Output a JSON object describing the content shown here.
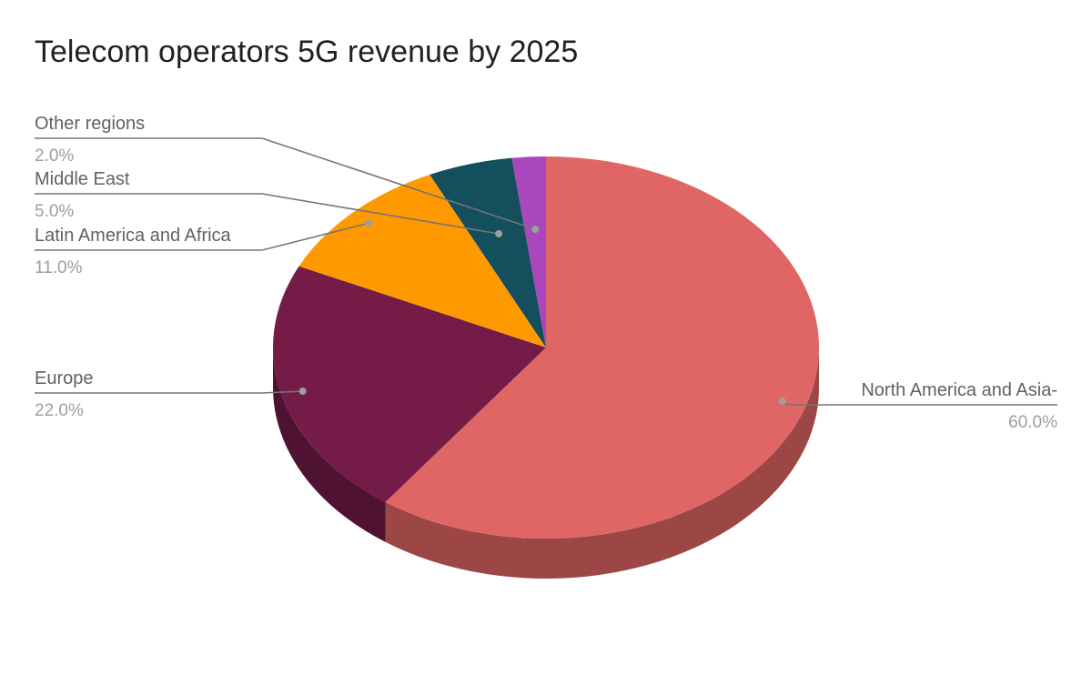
{
  "chart_data": {
    "type": "pie",
    "title": "Telecom operators 5G revenue by 2025",
    "slices": [
      {
        "label": "North America and Asia-",
        "value": 60.0,
        "pct_label": "60.0%",
        "color": "#e06666",
        "side_color": "#9c4646"
      },
      {
        "label": "Europe",
        "value": 22.0,
        "pct_label": "22.0%",
        "color": "#741b47",
        "side_color": "#501232"
      },
      {
        "label": "Latin America and Africa",
        "value": 11.0,
        "pct_label": "11.0%",
        "color": "#ff9900",
        "side_color": "#b26b00"
      },
      {
        "label": "Middle East",
        "value": 5.0,
        "pct_label": "5.0%",
        "color": "#134f5c",
        "side_color": "#0d3740"
      },
      {
        "label": "Other regions",
        "value": 2.0,
        "pct_label": "2.0%",
        "color": "#ab47bc",
        "side_color": "#773183"
      }
    ],
    "start_angle": "top",
    "direction": "clockwise",
    "style": "3d",
    "legend": "none"
  }
}
